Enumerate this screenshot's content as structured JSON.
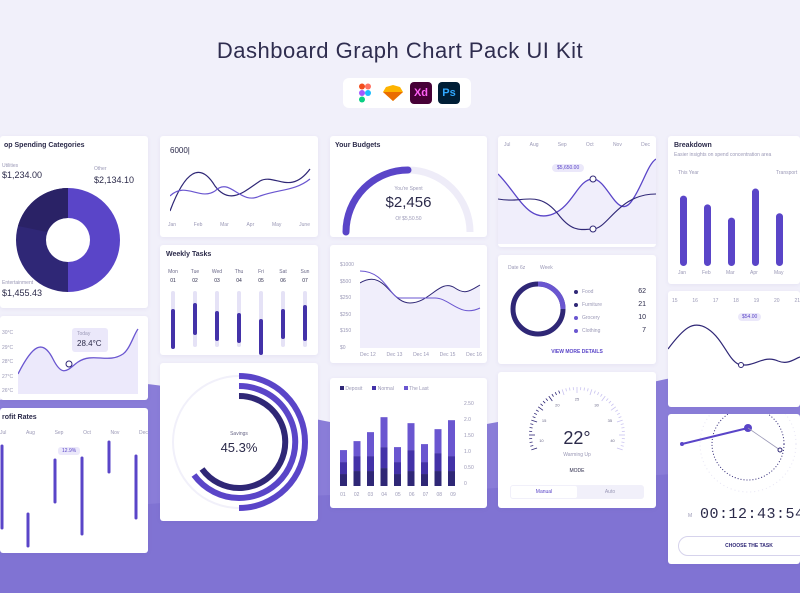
{
  "page": {
    "title": "Dashboard  Graph Chart Pack UI Kit",
    "tools": [
      "Figma",
      "Sketch",
      "Xd",
      "Ps"
    ]
  },
  "colors": {
    "primary": "#5a45c8",
    "dark": "#2f2776",
    "light": "#c9c3f0",
    "bg": "#f1f0fa"
  },
  "spending": {
    "title": "op Spending Categories",
    "utilities_label": "Utilities",
    "utilities_value": "$1,234.00",
    "other_label": "Other",
    "other_value": "$2,134.10",
    "entertainment_label": "Entertainment",
    "entertainment_value": "$1,455.43"
  },
  "line1": {
    "value": "6000|",
    "months": [
      "Jan",
      "Feb",
      "Mar",
      "Apr",
      "May",
      "June"
    ]
  },
  "budgets": {
    "title": "Your Budgets",
    "caption": "You're Spent",
    "amount": "$2,456",
    "sub": "Of $5,50.50"
  },
  "wave_top": {
    "months": [
      "Jul",
      "Aug",
      "Sep",
      "Oct",
      "Nov",
      "Dec"
    ],
    "tooltip": "$5,650.00"
  },
  "breakdown": {
    "title": "Breakdown",
    "subtitle": "Easier insights on spend concentration area",
    "filter": "This Year",
    "filter2": "Transport",
    "bar_chart": {
      "type": "bar",
      "categories": [
        "Jan",
        "Feb",
        "Mar",
        "Apr",
        "May"
      ],
      "values": [
        80,
        70,
        55,
        88,
        60
      ]
    }
  },
  "weekly": {
    "title": "Weekly Tasks",
    "days": [
      "Mon",
      "Tue",
      "Wed",
      "Thu",
      "Fri",
      "Sat",
      "Sun"
    ],
    "nums": [
      "01",
      "02",
      "03",
      "04",
      "05",
      "06",
      "07"
    ]
  },
  "area": {
    "yticks": [
      "$1000",
      "$500",
      "$250",
      "$250",
      "$150",
      "$0"
    ],
    "xticks": [
      "Dec 12",
      "Dec 13",
      "Dec 14",
      "Dec 15",
      "Dec 16"
    ]
  },
  "donut": {
    "filter1": "Date 6z",
    "filter2": "Week",
    "items": [
      {
        "label": "Food",
        "value": "62"
      },
      {
        "label": "Furniture",
        "value": "21"
      },
      {
        "label": "Grocery",
        "value": "10"
      },
      {
        "label": "Clothing",
        "value": "7"
      }
    ],
    "link": "VIEW MORE DETAILS"
  },
  "temp": {
    "ticks": [
      "30°C",
      "29°C",
      "28°C",
      "27°C",
      "26°C"
    ],
    "tooltip_label": "Today",
    "tooltip_value": "28.4°C"
  },
  "right_line": {
    "days": [
      "15",
      "16",
      "17",
      "18",
      "19",
      "20",
      "21"
    ],
    "tooltip": "$54.00"
  },
  "profit": {
    "title": "rofit Rates",
    "months": [
      "Jul",
      "Aug",
      "Sep",
      "Oct",
      "Nov",
      "Dec"
    ],
    "tooltip": "12.9%"
  },
  "savings": {
    "label": "Savings",
    "value": "45.3%"
  },
  "stacked": {
    "legend": [
      "Deposit",
      "Normal",
      "The Last"
    ],
    "yticks": [
      "2.50",
      "2.0",
      "1.50",
      "1.0",
      "0.50",
      "0"
    ],
    "xticks": [
      "01",
      "02",
      "03",
      "04",
      "05",
      "06",
      "07",
      "08",
      "09"
    ],
    "chart_data": {
      "type": "bar",
      "categories": [
        "01",
        "02",
        "03",
        "04",
        "05",
        "06",
        "07",
        "08",
        "09"
      ],
      "series": [
        {
          "name": "Deposit",
          "values": [
            0.4,
            0.5,
            0.5,
            0.6,
            0.4,
            0.5,
            0.4,
            0.5,
            0.5
          ]
        },
        {
          "name": "Normal",
          "values": [
            0.4,
            0.5,
            0.5,
            0.7,
            0.4,
            0.7,
            0.4,
            0.6,
            0.5
          ]
        },
        {
          "name": "The Last",
          "values": [
            0.4,
            0.5,
            0.8,
            1.0,
            0.5,
            0.9,
            0.6,
            0.8,
            1.2
          ]
        }
      ]
    }
  },
  "thermo": {
    "value": "22°",
    "mode_label": "Warming Up",
    "mode": "MODE",
    "ticks": [
      "10",
      "15",
      "20",
      "25",
      "30",
      "35",
      "40"
    ],
    "btn_manual": "Manual",
    "btn_auto": "Auto"
  },
  "timer": {
    "m": "M",
    "time": "00:12:43:54",
    "button": "CHOOSE THE TASK"
  }
}
